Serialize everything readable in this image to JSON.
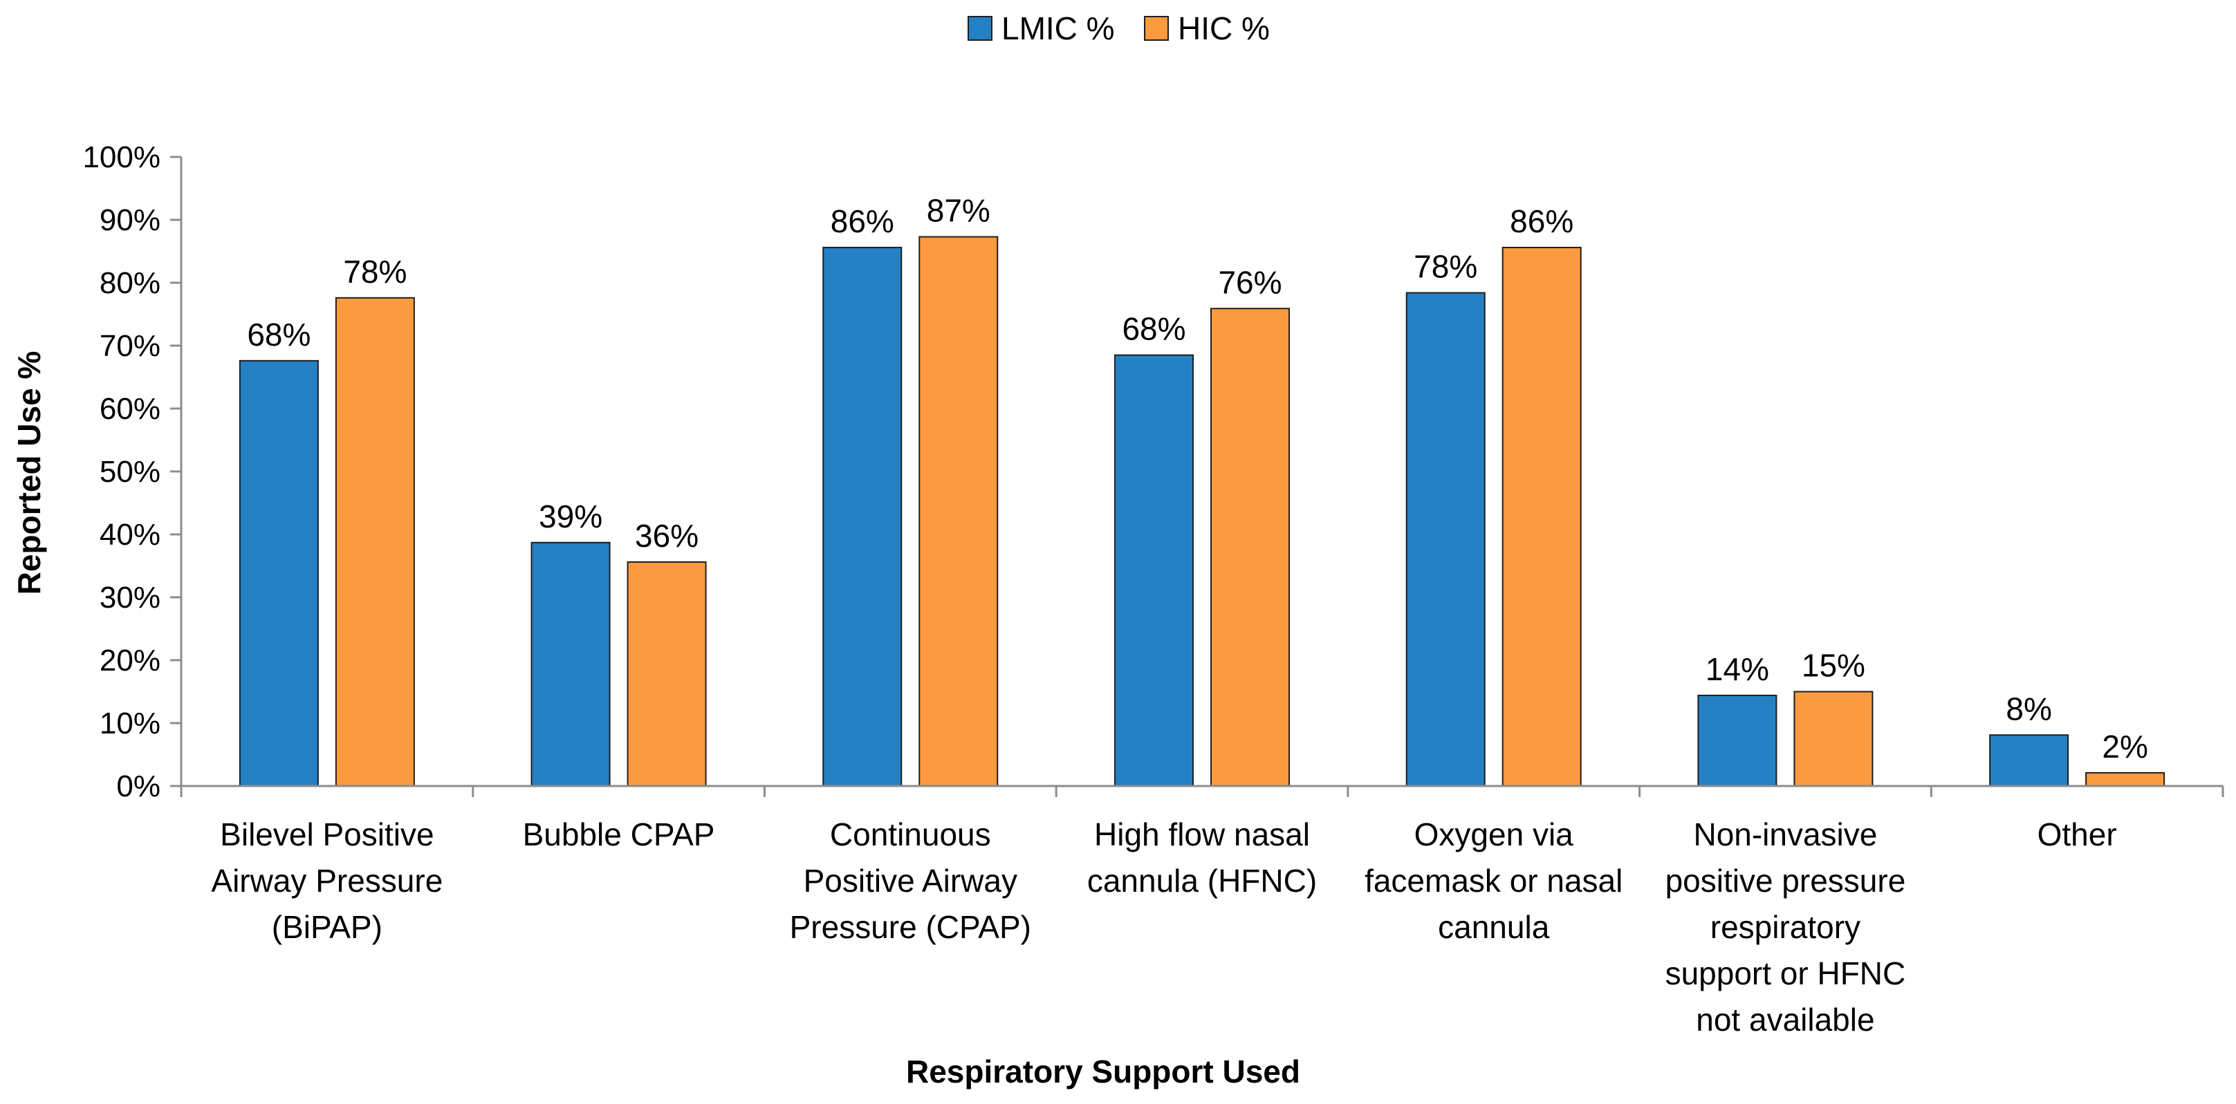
{
  "chart_data": {
    "type": "bar",
    "title": "",
    "xlabel": "Respiratory Support Used",
    "ylabel": "Reported Use %",
    "ylim": [
      0,
      100
    ],
    "yticks": [
      "0%",
      "10%",
      "20%",
      "30%",
      "40%",
      "50%",
      "60%",
      "70%",
      "80%",
      "90%",
      "100%"
    ],
    "grid": false,
    "legend_position": "top-center",
    "categories": [
      [
        "Bilevel Positive",
        "Airway Pressure",
        "(BiPAP)"
      ],
      [
        "Bubble CPAP"
      ],
      [
        "Continuous",
        "Positive Airway",
        "Pressure (CPAP)"
      ],
      [
        "High flow nasal",
        "cannula (HFNC)"
      ],
      [
        "Oxygen via",
        "facemask or nasal",
        "cannula"
      ],
      [
        "Non-invasive",
        "positive pressure",
        "respiratory",
        "support or HFNC",
        "not available"
      ],
      [
        "Other"
      ]
    ],
    "series": [
      {
        "name": "LMIC %",
        "color": "#2581c4",
        "values": [
          67.6,
          38.7,
          85.6,
          68.5,
          78.4,
          14.4,
          8.1
        ],
        "labels": [
          "68%",
          "39%",
          "86%",
          "68%",
          "78%",
          "14%",
          "8%"
        ]
      },
      {
        "name": "HIC %",
        "color": "#fb9a3e",
        "values": [
          77.6,
          35.6,
          87.3,
          75.9,
          85.6,
          15.0,
          2.1
        ],
        "labels": [
          "78%",
          "36%",
          "87%",
          "76%",
          "86%",
          "15%",
          "2%"
        ]
      }
    ]
  }
}
